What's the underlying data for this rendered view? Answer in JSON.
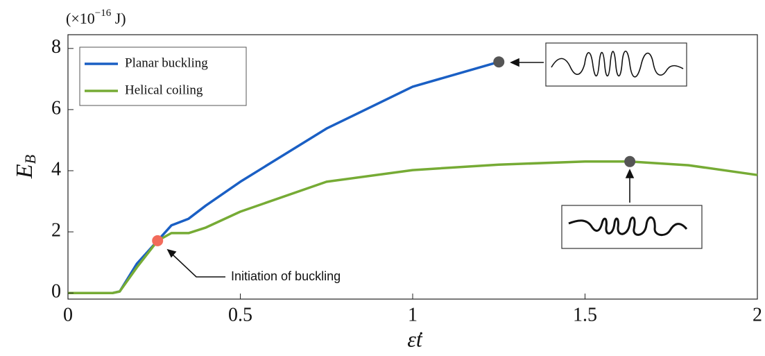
{
  "chart_data": {
    "type": "line",
    "unit_label": {
      "pre": "(×10",
      "exp": "−16",
      "post": " J)"
    },
    "xlabel": "ε̇t",
    "ylabel": {
      "main": "E",
      "sub": "B"
    },
    "x": [
      0,
      0.13,
      0.15,
      0.2,
      0.26,
      0.3,
      0.35,
      0.4,
      0.5,
      0.75,
      1.0,
      1.25,
      1.5,
      1.63,
      1.8,
      2.0
    ],
    "series": [
      {
        "name": "Planar buckling",
        "color": "#1a5fc4",
        "values": [
          0,
          0,
          0.05,
          0.96,
          1.71,
          2.21,
          2.43,
          2.86,
          3.64,
          5.38,
          6.75,
          7.56,
          null,
          null,
          null,
          null
        ]
      },
      {
        "name": "Helical coiling",
        "color": "#76ab35",
        "values": [
          0,
          0,
          0.05,
          0.84,
          1.71,
          1.96,
          1.96,
          2.14,
          2.66,
          3.64,
          4.02,
          4.2,
          4.3,
          4.3,
          4.18,
          3.86
        ]
      }
    ],
    "markers": [
      {
        "x": 0.26,
        "y": 1.71,
        "color": "#f26b5b"
      },
      {
        "x": 1.25,
        "y": 7.56,
        "color": "#555555"
      },
      {
        "x": 1.63,
        "y": 4.3,
        "color": "#555555"
      }
    ],
    "annotation": "Initiation of buckling",
    "xlim": [
      0,
      2
    ],
    "ylim": [
      -0.2,
      8.45
    ],
    "xticks": [
      0,
      0.5,
      1,
      1.5,
      2
    ],
    "yticks": [
      0,
      2,
      4,
      6,
      8
    ],
    "legend": "upper left"
  }
}
